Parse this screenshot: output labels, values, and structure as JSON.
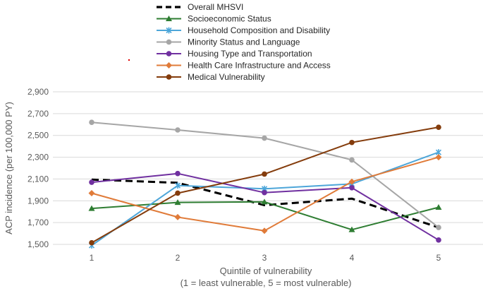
{
  "chart_data": {
    "type": "line",
    "title": "",
    "xlabel": "Quintile of vulnerability",
    "xlabel_line2": "(1 = least vulnerable, 5 = most vulnerable)",
    "ylabel": "ACP incidence (per 100,000 PY)",
    "categories": [
      "1",
      "2",
      "3",
      "4",
      "5"
    ],
    "ylim": [
      1500,
      2900
    ],
    "yticks": [
      1500,
      1700,
      1900,
      2100,
      2300,
      2500,
      2700,
      2900
    ],
    "ytick_labels": [
      "1,500",
      "1,700",
      "1,900",
      "2,100",
      "2,300",
      "2,500",
      "2,700",
      "2,900"
    ],
    "grid": true,
    "legend_position": "top",
    "series": [
      {
        "name": "Overall MHSVI",
        "color": "#000000",
        "marker": "none",
        "dashed": true,
        "values": [
          2095,
          2065,
          1860,
          1920,
          1655
        ]
      },
      {
        "name": "Socioeconomic Status",
        "color": "#2e7d32",
        "marker": "triangle",
        "dashed": false,
        "values": [
          1830,
          1885,
          1890,
          1635,
          1840
        ]
      },
      {
        "name": "Household Composition and Disability",
        "color": "#4da6d9",
        "marker": "star",
        "dashed": false,
        "values": [
          1490,
          2040,
          2010,
          2055,
          2345
        ]
      },
      {
        "name": "Minority Status and Language",
        "color": "#a6a6a6",
        "marker": "circle",
        "dashed": false,
        "values": [
          2620,
          2550,
          2475,
          2275,
          1655
        ]
      },
      {
        "name": "Housing Type and Transportation",
        "color": "#7030a0",
        "marker": "circle",
        "dashed": false,
        "values": [
          2070,
          2150,
          1975,
          2020,
          1540
        ]
      },
      {
        "name": "Health Care Infrastructure and Access",
        "color": "#e07b39",
        "marker": "diamond",
        "dashed": false,
        "values": [
          1970,
          1750,
          1625,
          2075,
          2300
        ]
      },
      {
        "name": "Medical Vulnerability",
        "color": "#843c0c",
        "marker": "circle",
        "dashed": false,
        "values": [
          1515,
          1970,
          2145,
          2435,
          2575
        ]
      }
    ]
  }
}
